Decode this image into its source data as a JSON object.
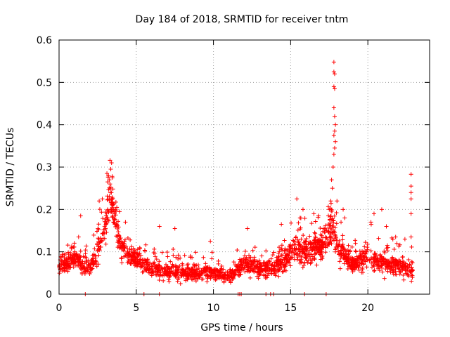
{
  "chart_data": {
    "type": "scatter",
    "title": "Day 184 of 2018, SRMTID for receiver tntm",
    "xlabel": "GPS time / hours",
    "ylabel": "SRMTID / TECUs",
    "xlim": [
      0,
      24
    ],
    "ylim": [
      0,
      0.6
    ],
    "x_ticks": [
      0,
      5,
      10,
      15,
      20
    ],
    "x_tick_labels": [
      "0",
      "5",
      "10",
      "15",
      "20"
    ],
    "y_ticks": [
      0,
      0.1,
      0.2,
      0.3,
      0.4,
      0.5,
      0.6
    ],
    "y_tick_labels": [
      "0",
      "0.1",
      "0.2",
      "0.3",
      "0.4",
      "0.5",
      "0.6"
    ],
    "grid": true,
    "marker": "+",
    "color": "#ff0000",
    "profile": [
      {
        "x": 0.0,
        "y": 0.07,
        "spread": 0.03
      },
      {
        "x": 0.5,
        "y": 0.07,
        "spread": 0.03
      },
      {
        "x": 1.0,
        "y": 0.09,
        "spread": 0.04
      },
      {
        "x": 1.5,
        "y": 0.07,
        "spread": 0.04
      },
      {
        "x": 2.0,
        "y": 0.06,
        "spread": 0.03
      },
      {
        "x": 2.5,
        "y": 0.1,
        "spread": 0.05
      },
      {
        "x": 3.0,
        "y": 0.15,
        "spread": 0.07
      },
      {
        "x": 3.3,
        "y": 0.24,
        "spread": 0.07
      },
      {
        "x": 3.6,
        "y": 0.18,
        "spread": 0.07
      },
      {
        "x": 4.0,
        "y": 0.11,
        "spread": 0.05
      },
      {
        "x": 4.5,
        "y": 0.09,
        "spread": 0.03
      },
      {
        "x": 5.0,
        "y": 0.08,
        "spread": 0.03
      },
      {
        "x": 6.0,
        "y": 0.06,
        "spread": 0.03
      },
      {
        "x": 7.0,
        "y": 0.05,
        "spread": 0.03
      },
      {
        "x": 8.0,
        "y": 0.05,
        "spread": 0.03
      },
      {
        "x": 9.0,
        "y": 0.05,
        "spread": 0.03
      },
      {
        "x": 10.0,
        "y": 0.05,
        "spread": 0.03
      },
      {
        "x": 11.0,
        "y": 0.04,
        "spread": 0.02
      },
      {
        "x": 12.0,
        "y": 0.07,
        "spread": 0.04
      },
      {
        "x": 13.0,
        "y": 0.06,
        "spread": 0.03
      },
      {
        "x": 14.0,
        "y": 0.06,
        "spread": 0.03
      },
      {
        "x": 14.8,
        "y": 0.09,
        "spread": 0.05
      },
      {
        "x": 15.2,
        "y": 0.11,
        "spread": 0.05
      },
      {
        "x": 16.0,
        "y": 0.1,
        "spread": 0.05
      },
      {
        "x": 17.0,
        "y": 0.11,
        "spread": 0.05
      },
      {
        "x": 17.6,
        "y": 0.16,
        "spread": 0.07
      },
      {
        "x": 18.2,
        "y": 0.1,
        "spread": 0.05
      },
      {
        "x": 19.0,
        "y": 0.07,
        "spread": 0.03
      },
      {
        "x": 20.0,
        "y": 0.09,
        "spread": 0.05
      },
      {
        "x": 21.0,
        "y": 0.07,
        "spread": 0.04
      },
      {
        "x": 22.0,
        "y": 0.07,
        "spread": 0.04
      },
      {
        "x": 22.9,
        "y": 0.05,
        "spread": 0.03
      }
    ],
    "spikes": [
      {
        "x": 3.3,
        "y": 0.316
      },
      {
        "x": 3.4,
        "y": 0.31
      },
      {
        "x": 3.35,
        "y": 0.295
      },
      {
        "x": 3.2,
        "y": 0.28
      },
      {
        "x": 3.1,
        "y": 0.285
      },
      {
        "x": 3.25,
        "y": 0.27
      },
      {
        "x": 3.45,
        "y": 0.275
      },
      {
        "x": 3.15,
        "y": 0.265
      },
      {
        "x": 3.3,
        "y": 0.26
      },
      {
        "x": 1.4,
        "y": 0.185
      },
      {
        "x": 2.6,
        "y": 0.22
      },
      {
        "x": 2.8,
        "y": 0.225
      },
      {
        "x": 4.3,
        "y": 0.17
      },
      {
        "x": 7.5,
        "y": 0.155
      },
      {
        "x": 6.5,
        "y": 0.16
      },
      {
        "x": 9.8,
        "y": 0.125
      },
      {
        "x": 12.2,
        "y": 0.155
      },
      {
        "x": 14.4,
        "y": 0.165
      },
      {
        "x": 15.4,
        "y": 0.225
      },
      {
        "x": 15.8,
        "y": 0.2
      },
      {
        "x": 16.5,
        "y": 0.19
      },
      {
        "x": 16.8,
        "y": 0.185
      },
      {
        "x": 17.5,
        "y": 0.2
      },
      {
        "x": 17.6,
        "y": 0.22
      },
      {
        "x": 17.7,
        "y": 0.25
      },
      {
        "x": 17.65,
        "y": 0.27
      },
      {
        "x": 17.75,
        "y": 0.3
      },
      {
        "x": 17.8,
        "y": 0.33
      },
      {
        "x": 17.85,
        "y": 0.345
      },
      {
        "x": 17.9,
        "y": 0.36
      },
      {
        "x": 17.8,
        "y": 0.375
      },
      {
        "x": 17.85,
        "y": 0.385
      },
      {
        "x": 17.9,
        "y": 0.4
      },
      {
        "x": 17.85,
        "y": 0.42
      },
      {
        "x": 17.8,
        "y": 0.44
      },
      {
        "x": 17.85,
        "y": 0.485
      },
      {
        "x": 17.8,
        "y": 0.49
      },
      {
        "x": 17.85,
        "y": 0.52
      },
      {
        "x": 17.8,
        "y": 0.525
      },
      {
        "x": 17.8,
        "y": 0.548
      },
      {
        "x": 18.4,
        "y": 0.2
      },
      {
        "x": 18.5,
        "y": 0.18
      },
      {
        "x": 18.0,
        "y": 0.22
      },
      {
        "x": 19.2,
        "y": 0.12
      },
      {
        "x": 20.4,
        "y": 0.19
      },
      {
        "x": 20.2,
        "y": 0.17
      },
      {
        "x": 20.9,
        "y": 0.2
      },
      {
        "x": 21.2,
        "y": 0.16
      },
      {
        "x": 21.8,
        "y": 0.135
      },
      {
        "x": 22.4,
        "y": 0.13
      },
      {
        "x": 22.8,
        "y": 0.283
      },
      {
        "x": 22.8,
        "y": 0.255
      },
      {
        "x": 22.8,
        "y": 0.24
      },
      {
        "x": 22.8,
        "y": 0.225
      },
      {
        "x": 22.8,
        "y": 0.19
      },
      {
        "x": 22.8,
        "y": 0.135
      }
    ],
    "zero_points": [
      1.7,
      5.5,
      6.5,
      11.6,
      11.7,
      11.8,
      13.4,
      13.7,
      13.9,
      15.9,
      17.3
    ],
    "point_count": 2100,
    "seed": 184
  }
}
